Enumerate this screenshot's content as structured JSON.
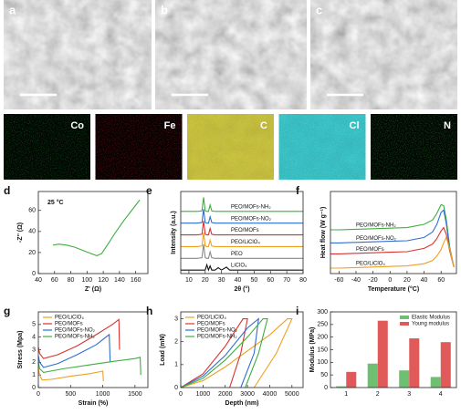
{
  "images": [
    {
      "label": "a"
    },
    {
      "label": "b"
    },
    {
      "label": "c"
    }
  ],
  "maps": [
    {
      "label": "Co",
      "color": "#1d8a2a"
    },
    {
      "label": "Fe",
      "color": "#c0161c"
    },
    {
      "label": "C",
      "color": "#c9c23a"
    },
    {
      "label": "Cl",
      "color": "#35c4c8"
    },
    {
      "label": "N",
      "color": "#2a9a35"
    }
  ],
  "chart_data": [
    {
      "type": "line",
      "panel": "d",
      "annotation": "25 °C",
      "xlabel": "Z' (Ω)",
      "ylabel": "-Z'' (Ω)",
      "x": [
        58,
        65,
        75,
        85,
        95,
        105,
        112,
        118,
        125,
        135,
        145,
        155,
        165
      ],
      "values": [
        27,
        28,
        27,
        25,
        22,
        19,
        17,
        19,
        27,
        39,
        50,
        60,
        70
      ],
      "color": "#3fae3f",
      "xlim": [
        40,
        175
      ],
      "xticks": [
        40,
        60,
        80,
        100,
        120,
        140,
        160
      ],
      "ylim": [
        0,
        78
      ],
      "yticks": [
        0,
        20,
        40,
        60
      ]
    },
    {
      "type": "line",
      "panel": "e",
      "xlabel": "2θ (°)",
      "ylabel": "Intensity (a.u.)",
      "legend": "inline",
      "x": [
        5,
        15,
        18,
        19,
        20,
        21,
        22,
        23,
        24,
        26,
        28,
        30,
        33,
        35,
        80
      ],
      "series": [
        {
          "name": "PEO/MOFs-NH₂",
          "color": "#3fae3f",
          "values": [
            5.3,
            5.3,
            5.35,
            6.5,
            5.35,
            5.3,
            5.3,
            5.85,
            5.35,
            5.3,
            5.3,
            5.3,
            5.3,
            5.3,
            5.3
          ]
        },
        {
          "name": "PEO/MOFs-NO₂",
          "color": "#2f6fd0",
          "values": [
            4.3,
            4.3,
            4.35,
            5.5,
            4.35,
            4.3,
            4.3,
            4.85,
            4.35,
            4.3,
            4.3,
            4.3,
            4.3,
            4.3,
            4.3
          ]
        },
        {
          "name": "PEO/MOFs",
          "color": "#d9322e",
          "values": [
            3.3,
            3.3,
            3.35,
            4.5,
            3.35,
            3.3,
            3.3,
            3.85,
            3.35,
            3.3,
            3.3,
            3.3,
            3.3,
            3.3,
            3.3
          ]
        },
        {
          "name": "PEO/LiClO₄",
          "color": "#f0a020",
          "values": [
            2.3,
            2.3,
            2.35,
            3.5,
            2.35,
            2.3,
            2.3,
            2.85,
            2.35,
            2.3,
            2.3,
            2.3,
            2.3,
            2.3,
            2.3
          ]
        },
        {
          "name": "PEO",
          "color": "#888888",
          "values": [
            1.3,
            1.3,
            1.35,
            2.5,
            1.35,
            1.3,
            1.3,
            1.85,
            1.35,
            1.3,
            1.3,
            1.3,
            1.3,
            1.3,
            1.3
          ]
        },
        {
          "name": "LiClO₄",
          "color": "#111111",
          "values": [
            0.3,
            0.3,
            0.3,
            0.3,
            0.3,
            0.75,
            0.3,
            0.65,
            0.3,
            0.3,
            0.5,
            0.3,
            0.55,
            0.3,
            0.3
          ]
        }
      ],
      "xlim": [
        5,
        80
      ],
      "xticks": [
        10,
        20,
        30,
        40,
        50,
        60,
        70,
        80
      ],
      "ylim": [
        0,
        7
      ]
    },
    {
      "type": "line",
      "panel": "f",
      "xlabel": "Temperature (°C)",
      "ylabel": "Heat flow (W g⁻¹)",
      "legend": "inline",
      "x": [
        -70,
        -60,
        -40,
        -20,
        0,
        20,
        40,
        50,
        55,
        60,
        63,
        66,
        70,
        75
      ],
      "series": [
        {
          "name": "PEO/MOFs-NH₂",
          "color": "#3fae3f",
          "values": [
            4.0,
            4.0,
            4.05,
            4.1,
            4.15,
            4.2,
            4.5,
            4.9,
            5.5,
            6.3,
            6.2,
            5.0,
            2.5,
            0.6
          ]
        },
        {
          "name": "PEO/MOFs-NO₂",
          "color": "#2f6fd0",
          "values": [
            2.8,
            2.8,
            2.85,
            2.9,
            2.95,
            3.0,
            3.3,
            3.8,
            4.5,
            5.6,
            5.8,
            4.6,
            2.3,
            0.6
          ]
        },
        {
          "name": "PEO/MOFs",
          "color": "#d9322e",
          "values": [
            1.8,
            1.8,
            1.85,
            1.9,
            1.95,
            2.0,
            2.3,
            2.7,
            3.2,
            3.9,
            4.2,
            3.6,
            2.1,
            0.6
          ]
        },
        {
          "name": "PEO/LiClO₄",
          "color": "#f0a020",
          "values": [
            0.5,
            0.5,
            0.55,
            0.6,
            0.65,
            0.7,
            0.9,
            1.2,
            1.6,
            2.2,
            2.8,
            3.3,
            2.3,
            0.6
          ]
        }
      ],
      "xlim": [
        -70,
        78
      ],
      "xticks": [
        -60,
        -40,
        -20,
        0,
        20,
        40,
        60
      ],
      "ylim": [
        0,
        7.5
      ]
    },
    {
      "type": "line",
      "panel": "g",
      "xlabel": "Strain (%)",
      "ylabel": "Stress (Mpa)",
      "legend": "top-left",
      "series": [
        {
          "name": "PEO/LiClO₄",
          "color": "#f0a020",
          "x": [
            0,
            20,
            60,
            200,
            500,
            800,
            1000,
            1010
          ],
          "values": [
            1.5,
            1.0,
            0.6,
            0.65,
            0.9,
            1.1,
            1.3,
            0.5
          ]
        },
        {
          "name": "PEO/MOFs",
          "color": "#d9322e",
          "x": [
            0,
            20,
            80,
            300,
            600,
            900,
            1150,
            1250,
            1260
          ],
          "values": [
            3.2,
            2.7,
            2.3,
            2.6,
            3.3,
            4.2,
            5.0,
            5.4,
            3.0
          ]
        },
        {
          "name": "PEO/MOFs-NO₂",
          "color": "#2f6fd0",
          "x": [
            0,
            20,
            80,
            300,
            600,
            900,
            1100,
            1115
          ],
          "values": [
            2.5,
            2.0,
            1.6,
            1.9,
            2.6,
            3.4,
            4.2,
            2.0
          ]
        },
        {
          "name": "PEO/MOFs-NH₂",
          "color": "#3fae3f",
          "x": [
            0,
            20,
            80,
            400,
            800,
            1200,
            1500,
            1580,
            1590
          ],
          "values": [
            2.0,
            1.5,
            1.2,
            1.5,
            1.8,
            2.1,
            2.3,
            2.4,
            1.0
          ]
        }
      ],
      "xlim": [
        0,
        1700
      ],
      "xticks": [
        0,
        500,
        1000,
        1500
      ],
      "ylim": [
        0,
        6
      ],
      "yticks": [
        0,
        1,
        2,
        3,
        4,
        5
      ]
    },
    {
      "type": "line",
      "panel": "h",
      "xlabel": "Depth (nm)",
      "ylabel": "Load (mN)",
      "legend": "top-left",
      "series": [
        {
          "name": "PEO/LiClO₄",
          "color": "#f0a020",
          "x": [
            0,
            1000,
            2000,
            3000,
            4000,
            4800,
            5000,
            4300,
            3300
          ],
          "values": [
            0,
            0.3,
            0.9,
            1.6,
            2.3,
            3.0,
            3.0,
            1.5,
            0
          ]
        },
        {
          "name": "PEO/MOFs",
          "color": "#d9322e",
          "x": [
            0,
            1000,
            2000,
            2800,
            3000,
            2700,
            2200
          ],
          "values": [
            0,
            0.6,
            1.8,
            3.0,
            3.0,
            1.5,
            0
          ]
        },
        {
          "name": "PEO/MOFs-NO₂",
          "color": "#2f6fd0",
          "x": [
            0,
            1000,
            2000,
            3000,
            3500,
            3300,
            2700
          ],
          "values": [
            0,
            0.5,
            1.4,
            2.6,
            3.0,
            1.5,
            0
          ]
        },
        {
          "name": "PEO/MOFs-NH₂",
          "color": "#3fae3f",
          "x": [
            0,
            1000,
            2000,
            3000,
            3700,
            3900,
            3500,
            2900
          ],
          "values": [
            0,
            0.4,
            1.2,
            2.2,
            3.0,
            3.0,
            1.5,
            0
          ]
        }
      ],
      "xlim": [
        0,
        5500
      ],
      "xticks": [
        0,
        1000,
        2000,
        3000,
        4000,
        5000
      ],
      "ylim": [
        0,
        3.3
      ],
      "yticks": [
        0,
        1,
        2,
        3
      ]
    },
    {
      "type": "bar",
      "panel": "i",
      "ylabel": "Modulus (MPa)",
      "legend": "top-right",
      "categories": [
        "1",
        "2",
        "3",
        "4"
      ],
      "series": [
        {
          "name": "Elastic Modulus",
          "color": "#6fbf73",
          "values": [
            5,
            95,
            68,
            42
          ]
        },
        {
          "name": "Young modulus",
          "color": "#e05a5a",
          "values": [
            62,
            265,
            195,
            180
          ]
        }
      ],
      "ylim": [
        0,
        300
      ],
      "yticks": [
        0,
        50,
        100,
        150,
        200,
        250,
        300
      ]
    }
  ]
}
